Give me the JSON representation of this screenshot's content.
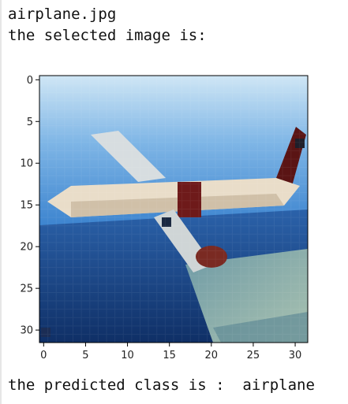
{
  "output": {
    "filename_line": "airplane.jpg",
    "selected_line": "the selected image is:",
    "prediction_line": "the predicted class is :  airplane"
  },
  "figure": {
    "x_ticks": [
      "0",
      "5",
      "10",
      "15",
      "20",
      "25",
      "30"
    ],
    "y_ticks": [
      "0",
      "5",
      "10",
      "15",
      "20",
      "25",
      "30"
    ],
    "image": "pixelated airplane over sea",
    "colors": {
      "sky_light": "#a8cce8",
      "sky_mid": "#4f93d2",
      "sea_dark": "#173f7a",
      "land_green": "#8cae9a",
      "plane_body": "#e8dcc8",
      "plane_red": "#7a2020"
    }
  }
}
